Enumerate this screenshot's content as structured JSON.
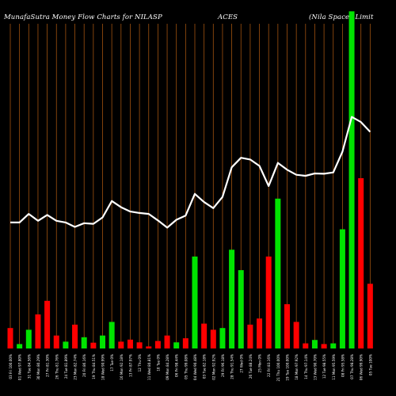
{
  "header": {
    "part1": "MunafaSutra  Money Flow  Charts for NILASP",
    "part2": "ACES",
    "part3": "(Nila  Spaces Limit"
  },
  "chart_data": {
    "type": "bar",
    "title": "MunafaSutra Money Flow Charts for NILASPACES (Nila Spaces Limit",
    "ylim": [
      0,
      100
    ],
    "colors": {
      "up": "#00e400",
      "down": "#ff0000",
      "line": "#ffffff",
      "grid": "#a0520f",
      "background": "#000000"
    },
    "categories": [
      "03 Fri Jan 2025",
      "01 Wed Jan 2025",
      "31 Tue Dec 2024",
      "30 Mon Dec 2024",
      "27 Fri Dec 2024",
      "26 Thu Dec 2024",
      "24 Tue Dec 2024",
      "23 Mon Dec 2024",
      "20 Fri Dec 2024",
      "19 Thu Dec 2024",
      "18 Wed Dec 2024",
      "17 Tue Dec 2024",
      "16 Mon Dec 2024",
      "13 Fri Dec 2024",
      "12 Thu Dec 2024",
      "11 Wed Dec 2024",
      "10 Tue Dec 2024",
      "09 Mon Dec 2024",
      "06 Fri Dec 2024",
      "05 Thu Dec 2024",
      "04 Wed Dec 2024",
      "03 Tue Dec 2024",
      "02 Mon Dec 2024",
      "29 Fri Nov 2024",
      "28 Thu Nov 2024",
      "27 Wed Nov 2024",
      "26 Tue Nov 2024",
      "25 Mon Nov 2024",
      "22 Fri Nov 2024",
      "21 Thu Nov 2024",
      "19 Tue Nov 2024",
      "18 Mon Nov 2024",
      "14 Thu Nov 2024",
      "13 Wed Nov 2024",
      "12 Tue Nov 2024",
      "11 Mon Nov 2024",
      "08 Fri Nov 2024",
      "07 Thu Nov 2024",
      "06 Wed Nov 2024",
      "05 Tue Nov 2024"
    ],
    "tick_labels": [
      "03 Fri 100.00%",
      "01 Wed 97.80%",
      "31 Tue 84.56%",
      "30 Mon 80.29%",
      "27 Fri 81.30%",
      "26 Thu 81.76%",
      "24 Tue 81.89%",
      "23 Mon 82.74%",
      "20 Fri 86.16%",
      "19 Thu 84.51%",
      "18 Wed 90.99%",
      "17 Tue 0%",
      "16 Mon 92.18%",
      "13 Fri 87.97%",
      "12 Thu 0%",
      "11 Wed 80.81%",
      "10 Tue 0%",
      "09 Mon 84.28%",
      "06 Fri 98.44%",
      "05 Thu 99.08%",
      "04 Wed 90.48%",
      "03 Tue 82.18%",
      "02 Mon 92.92%",
      "29 Fri 96.18%",
      "28 Thu 91.54%",
      "27 Wed 0%",
      "26 Tue 88.24%",
      "25 Mon 0%",
      "22 Fri 83.16%",
      "21 Thu 100.00%",
      "19 Tue 100.00%",
      "18 Mon 97.92%",
      "14 Thu 97.14%",
      "13 Wed 90.70%",
      "12 Tue 98.55%",
      "11 Mon 95.59%",
      "08 Fri 95.58%",
      "07 Thu 98.28%",
      "06 Wed 99.90%",
      "05 Tue 100%"
    ],
    "bars": [
      {
        "value": 6,
        "color": "red"
      },
      {
        "value": 1.3,
        "color": "green"
      },
      {
        "value": 5.5,
        "color": "green"
      },
      {
        "value": 10,
        "color": "red"
      },
      {
        "value": 14,
        "color": "red"
      },
      {
        "value": 3.8,
        "color": "red"
      },
      {
        "value": 2,
        "color": "green"
      },
      {
        "value": 7,
        "color": "red"
      },
      {
        "value": 3.3,
        "color": "green"
      },
      {
        "value": 1.7,
        "color": "red"
      },
      {
        "value": 3.8,
        "color": "green"
      },
      {
        "value": 7.8,
        "color": "green"
      },
      {
        "value": 2,
        "color": "red"
      },
      {
        "value": 2.6,
        "color": "red"
      },
      {
        "value": 1.8,
        "color": "red"
      },
      {
        "value": 0.6,
        "color": "red"
      },
      {
        "value": 2.2,
        "color": "red"
      },
      {
        "value": 3.8,
        "color": "red"
      },
      {
        "value": 1.8,
        "color": "green"
      },
      {
        "value": 3,
        "color": "red"
      },
      {
        "value": 27,
        "color": "green"
      },
      {
        "value": 7.3,
        "color": "red"
      },
      {
        "value": 5.5,
        "color": "red"
      },
      {
        "value": 6,
        "color": "green"
      },
      {
        "value": 29,
        "color": "green"
      },
      {
        "value": 23,
        "color": "green"
      },
      {
        "value": 7,
        "color": "red"
      },
      {
        "value": 8.8,
        "color": "red"
      },
      {
        "value": 27,
        "color": "red"
      },
      {
        "value": 44,
        "color": "green"
      },
      {
        "value": 13,
        "color": "red"
      },
      {
        "value": 7.8,
        "color": "red"
      },
      {
        "value": 1.5,
        "color": "red"
      },
      {
        "value": 2.5,
        "color": "green"
      },
      {
        "value": 1.3,
        "color": "red"
      },
      {
        "value": 1.5,
        "color": "green"
      },
      {
        "value": 35,
        "color": "green"
      },
      {
        "value": 99,
        "color": "green"
      },
      {
        "value": 50,
        "color": "red"
      },
      {
        "value": 19,
        "color": "red"
      }
    ],
    "line": [
      37,
      37,
      39.5,
      37.5,
      39.2,
      37.5,
      37,
      35.7,
      36.8,
      36.6,
      38.5,
      43.3,
      41.5,
      40.2,
      39.8,
      39.5,
      37.6,
      35.5,
      37.8,
      39,
      45.4,
      43,
      41.2,
      44.5,
      53.2,
      56,
      55.5,
      53.6,
      47.7,
      54.5,
      52.5,
      51,
      50.7,
      51.4,
      51.3,
      51.7,
      57.8,
      68,
      66.5,
      63.6
    ]
  }
}
